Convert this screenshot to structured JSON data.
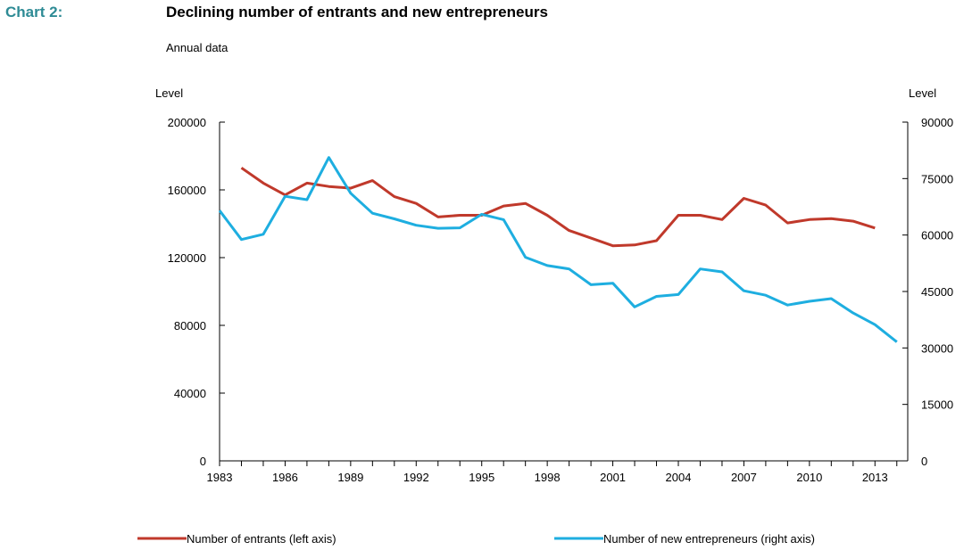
{
  "header": {
    "chart_label": "Chart 2:",
    "title": "Declining number of entrants and new entrepreneurs",
    "subtitle": "Annual data"
  },
  "chart_data": {
    "type": "line",
    "x": [
      1983,
      1984,
      1985,
      1986,
      1987,
      1988,
      1989,
      1990,
      1991,
      1992,
      1993,
      1994,
      1995,
      1996,
      1997,
      1998,
      1999,
      2000,
      2001,
      2002,
      2003,
      2004,
      2005,
      2006,
      2007,
      2008,
      2009,
      2010,
      2011,
      2012,
      2013,
      2014
    ],
    "xticks": [
      "1983",
      "1986",
      "1989",
      "1992",
      "1995",
      "1998",
      "2001",
      "2004",
      "2007",
      "2010",
      "2013"
    ],
    "xlim": [
      1983,
      2014.5
    ],
    "y_left": {
      "label": "Level",
      "ylim": [
        0,
        200000
      ],
      "ticks": [
        "0",
        "40000",
        "80000",
        "120000",
        "160000",
        "200000"
      ]
    },
    "y_right": {
      "label": "Level",
      "ylim": [
        0,
        90000
      ],
      "ticks": [
        "0",
        "15000",
        "30000",
        "45000",
        "60000",
        "75000",
        "90000"
      ]
    },
    "series": [
      {
        "name": "Number of entrants (left axis)",
        "axis": "left",
        "color": "#c0392b",
        "values": [
          null,
          173000,
          164000,
          157000,
          164000,
          162000,
          161000,
          165500,
          156000,
          152000,
          144000,
          145000,
          145000,
          150500,
          152000,
          145000,
          136000,
          131500,
          127000,
          127500,
          130000,
          145000,
          145000,
          142500,
          155000,
          151000,
          140500,
          142500,
          143000,
          141500,
          137500,
          null
        ]
      },
      {
        "name": "Number of new entrepreneurs (right axis)",
        "axis": "right",
        "color": "#1eaee0",
        "values": [
          66500,
          58800,
          60200,
          70300,
          69400,
          80600,
          71100,
          65800,
          64300,
          62600,
          61800,
          61900,
          65500,
          64100,
          54100,
          51900,
          51000,
          46800,
          47200,
          40900,
          43700,
          44200,
          51000,
          50200,
          45200,
          44000,
          41400,
          42400,
          43100,
          39300,
          36200,
          31600
        ]
      }
    ],
    "grid": false,
    "legend": "bottom"
  }
}
